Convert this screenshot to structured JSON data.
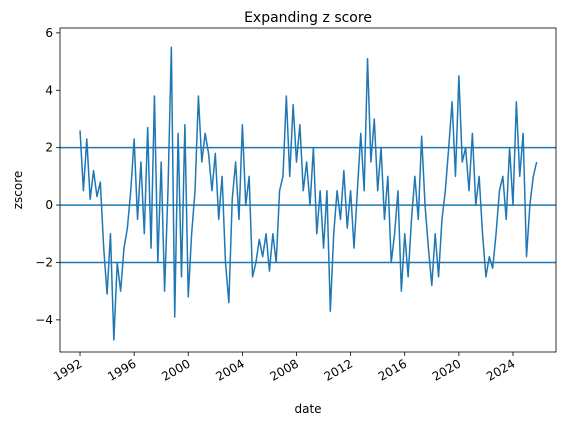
{
  "chart_data": {
    "type": "line",
    "title": "Expanding z score",
    "x_label": "date",
    "y_label": "zscore",
    "color": "#1f77b4",
    "x": [
      1992.0,
      1992.25,
      1992.5,
      1992.75,
      1993.0,
      1993.25,
      1993.5,
      1993.75,
      1994.0,
      1994.25,
      1994.5,
      1994.75,
      1995.0,
      1995.25,
      1995.5,
      1995.75,
      1996.0,
      1996.25,
      1996.5,
      1996.75,
      1997.0,
      1997.25,
      1997.5,
      1997.75,
      1998.0,
      1998.25,
      1998.5,
      1998.75,
      1999.0,
      1999.25,
      1999.5,
      1999.75,
      2000.0,
      2000.25,
      2000.5,
      2000.75,
      2001.0,
      2001.25,
      2001.5,
      2001.75,
      2002.0,
      2002.25,
      2002.5,
      2002.75,
      2003.0,
      2003.25,
      2003.5,
      2003.75,
      2004.0,
      2004.25,
      2004.5,
      2004.75,
      2005.0,
      2005.25,
      2005.5,
      2005.75,
      2006.0,
      2006.25,
      2006.5,
      2006.75,
      2007.0,
      2007.25,
      2007.5,
      2007.75,
      2008.0,
      2008.25,
      2008.5,
      2008.75,
      2009.0,
      2009.25,
      2009.5,
      2009.75,
      2010.0,
      2010.25,
      2010.5,
      2010.75,
      2011.0,
      2011.25,
      2011.5,
      2011.75,
      2012.0,
      2012.25,
      2012.5,
      2012.75,
      2013.0,
      2013.25,
      2013.5,
      2013.75,
      2014.0,
      2014.25,
      2014.5,
      2014.75,
      2015.0,
      2015.25,
      2015.5,
      2015.75,
      2016.0,
      2016.25,
      2016.5,
      2016.75,
      2017.0,
      2017.25,
      2017.5,
      2017.75,
      2018.0,
      2018.25,
      2018.5,
      2018.75,
      2019.0,
      2019.25,
      2019.5,
      2019.75,
      2020.0,
      2020.25,
      2020.5,
      2020.75,
      2021.0,
      2021.25,
      2021.5,
      2021.75,
      2022.0,
      2022.25,
      2022.5,
      2022.75,
      2023.0,
      2023.25,
      2023.5,
      2023.75,
      2024.0,
      2024.25,
      2024.5,
      2024.75,
      2025.0,
      2025.25,
      2025.5,
      2025.75
    ],
    "values": [
      2.6,
      0.5,
      2.3,
      0.2,
      1.2,
      0.3,
      0.8,
      -1.5,
      -3.1,
      -1.0,
      -4.7,
      -2.0,
      -3.0,
      -1.5,
      -0.8,
      0.5,
      2.3,
      -0.5,
      1.5,
      -1.0,
      2.7,
      -1.5,
      3.8,
      -2.0,
      1.5,
      -3.0,
      0.5,
      5.5,
      -3.9,
      2.5,
      -2.5,
      2.8,
      -3.2,
      -1.0,
      0.5,
      3.8,
      1.5,
      2.5,
      1.8,
      0.5,
      1.8,
      -0.5,
      1.0,
      -2.0,
      -3.4,
      0.2,
      1.5,
      -0.5,
      2.8,
      0.0,
      1.0,
      -2.5,
      -2.0,
      -1.2,
      -1.8,
      -1.0,
      -2.3,
      -1.0,
      -2.0,
      0.5,
      1.0,
      3.8,
      1.0,
      3.5,
      1.5,
      2.8,
      0.5,
      1.5,
      0.0,
      2.0,
      -1.0,
      0.5,
      -1.5,
      0.5,
      -3.7,
      -1.0,
      0.5,
      -0.5,
      1.2,
      -0.8,
      0.5,
      -1.5,
      0.5,
      2.5,
      0.5,
      5.1,
      1.5,
      3.0,
      0.5,
      2.0,
      -0.5,
      1.0,
      -2.0,
      -1.0,
      0.5,
      -3.0,
      -1.0,
      -2.5,
      -0.5,
      1.0,
      -0.5,
      2.4,
      0.0,
      -1.5,
      -2.8,
      -1.0,
      -2.5,
      -0.5,
      0.5,
      2.0,
      3.6,
      1.0,
      4.5,
      1.5,
      2.0,
      0.5,
      2.5,
      0.0,
      1.0,
      -1.0,
      -2.5,
      -1.8,
      -2.2,
      -1.0,
      0.5,
      1.0,
      -0.5,
      2.0,
      0.0,
      3.6,
      1.0,
      2.5,
      -1.8,
      0.0,
      1.0,
      1.5
    ],
    "hlines": [
      2,
      0,
      -2
    ],
    "xlim": [
      1990.52,
      2027.18
    ],
    "xticks": [
      1992,
      1996,
      2000,
      2004,
      2008,
      2012,
      2016,
      2020,
      2024
    ],
    "ylim": [
      -5.12,
      6.17
    ],
    "yticks": [
      {
        "value": -4,
        "label": "−4"
      },
      {
        "value": -2,
        "label": "−2"
      },
      0,
      2,
      4,
      6
    ]
  }
}
